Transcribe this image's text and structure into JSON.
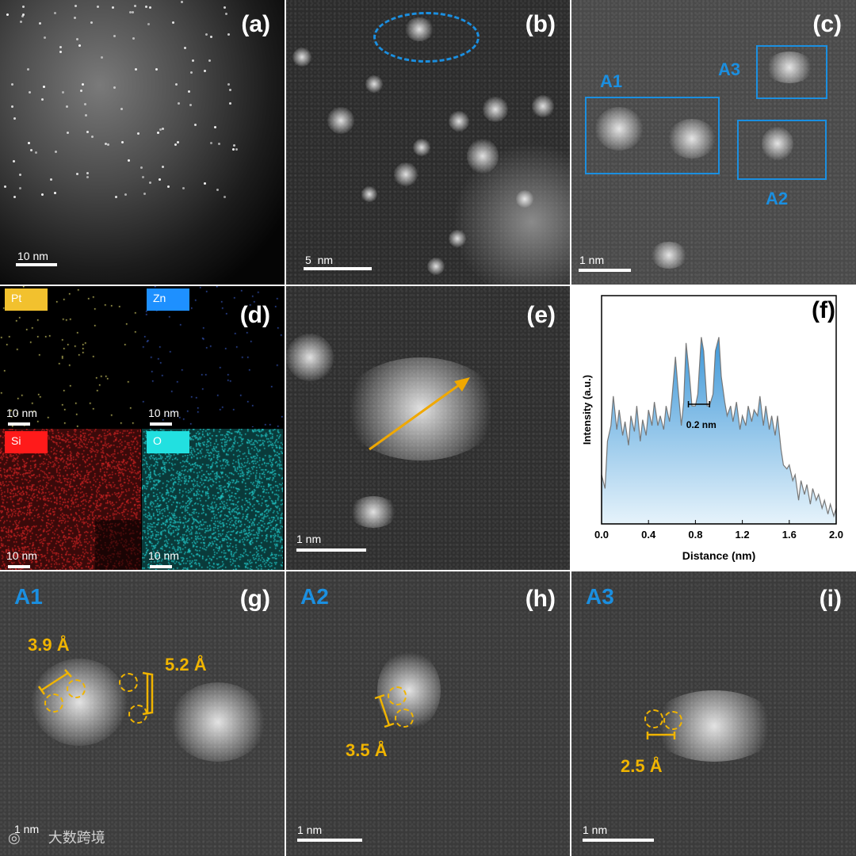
{
  "panels": {
    "a": {
      "letter": "(a)",
      "scale": "10 nm"
    },
    "b": {
      "letter": "(b)",
      "scale": "5  nm"
    },
    "c": {
      "letter": "(c)",
      "scale": "1 nm",
      "boxes": [
        "A1",
        "A2",
        "A3"
      ]
    },
    "d": {
      "letter": "(d)",
      "maps": [
        {
          "element": "Pt",
          "scale": "10 nm",
          "tag_color": "#f2c12e",
          "dot_color": "#e8e070"
        },
        {
          "element": "Zn",
          "scale": "10 nm",
          "tag_color": "#1e90ff",
          "dot_color": "#3a5fcd"
        },
        {
          "element": "Si",
          "scale": "10 nm",
          "tag_color": "#ff1a1a",
          "dot_color": "#cc2222"
        },
        {
          "element": "O",
          "scale": "10 nm",
          "tag_color": "#22e0e0",
          "dot_color": "#20c8c8"
        }
      ]
    },
    "e": {
      "letter": "(e)",
      "scale": "1 nm"
    },
    "f": {
      "letter": "(f)",
      "annotation": "0.2 nm"
    },
    "g": {
      "letter": "(g)",
      "region": "A1",
      "scale": "1 nm",
      "measures": [
        "3.9 Å",
        "5.2 Å"
      ]
    },
    "h": {
      "letter": "(h)",
      "region": "A2",
      "scale": "1 nm",
      "measures": [
        "3.5 Å"
      ]
    },
    "i": {
      "letter": "(i)",
      "region": "A3",
      "scale": "1 nm",
      "measures": [
        "2.5 Å"
      ]
    }
  },
  "chart_data": {
    "type": "area",
    "xlabel": "Distance (nm)",
    "ylabel": "Intensity (a.u.)",
    "xlim": [
      0.0,
      2.0
    ],
    "xticks": [
      "0.0",
      "0.4",
      "0.8",
      "1.2",
      "1.6",
      "2.0"
    ],
    "grid": false,
    "colors": {
      "fill_top": "#3d97d8",
      "fill_bottom": "#e6f3fb",
      "line": "#777777"
    },
    "x": [
      0.0,
      0.03,
      0.05,
      0.08,
      0.1,
      0.13,
      0.15,
      0.18,
      0.2,
      0.23,
      0.25,
      0.28,
      0.3,
      0.33,
      0.35,
      0.38,
      0.4,
      0.43,
      0.45,
      0.48,
      0.5,
      0.53,
      0.55,
      0.58,
      0.6,
      0.63,
      0.65,
      0.68,
      0.7,
      0.72,
      0.75,
      0.77,
      0.8,
      0.82,
      0.85,
      0.87,
      0.9,
      0.92,
      0.95,
      0.97,
      1.0,
      1.02,
      1.05,
      1.07,
      1.1,
      1.12,
      1.15,
      1.18,
      1.2,
      1.23,
      1.25,
      1.28,
      1.3,
      1.33,
      1.35,
      1.38,
      1.4,
      1.43,
      1.45,
      1.48,
      1.5,
      1.53,
      1.55,
      1.58,
      1.6,
      1.63,
      1.65,
      1.68,
      1.7,
      1.73,
      1.75,
      1.78,
      1.8,
      1.83,
      1.85,
      1.88,
      1.9,
      1.93,
      1.95,
      1.98,
      2.0
    ],
    "y": [
      0.25,
      0.18,
      0.42,
      0.5,
      0.65,
      0.48,
      0.58,
      0.45,
      0.52,
      0.4,
      0.55,
      0.47,
      0.6,
      0.42,
      0.53,
      0.45,
      0.58,
      0.5,
      0.62,
      0.5,
      0.55,
      0.48,
      0.6,
      0.52,
      0.64,
      0.85,
      0.7,
      0.5,
      0.62,
      0.92,
      0.75,
      0.6,
      0.6,
      0.66,
      0.95,
      0.88,
      0.6,
      0.6,
      0.66,
      0.88,
      0.95,
      0.75,
      0.62,
      0.55,
      0.6,
      0.52,
      0.62,
      0.48,
      0.55,
      0.5,
      0.6,
      0.52,
      0.58,
      0.55,
      0.65,
      0.5,
      0.6,
      0.48,
      0.55,
      0.45,
      0.55,
      0.38,
      0.3,
      0.28,
      0.3,
      0.22,
      0.25,
      0.12,
      0.22,
      0.15,
      0.2,
      0.1,
      0.18,
      0.12,
      0.15,
      0.08,
      0.12,
      0.05,
      0.1,
      0.04,
      0.08
    ]
  },
  "watermark": "大数跨境"
}
